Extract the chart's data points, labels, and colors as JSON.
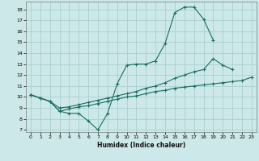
{
  "background_color": "#cce8e8",
  "grid_color": "#aacfcf",
  "line_color": "#1a6e62",
  "xlabel": "Humidex (Indice chaleur)",
  "xlim": [
    -0.5,
    23.5
  ],
  "ylim": [
    6.8,
    18.7
  ],
  "xticks": [
    0,
    1,
    2,
    3,
    4,
    5,
    6,
    7,
    8,
    9,
    10,
    11,
    12,
    13,
    14,
    15,
    16,
    17,
    18,
    19,
    20,
    21,
    22,
    23
  ],
  "yticks": [
    7,
    8,
    9,
    10,
    11,
    12,
    13,
    14,
    15,
    16,
    17,
    18
  ],
  "line1_x": [
    0,
    1,
    2,
    3,
    4,
    5,
    6,
    7,
    8,
    9,
    10,
    11,
    12,
    13,
    14,
    15,
    16,
    17,
    18,
    19
  ],
  "line1_y": [
    10.2,
    9.9,
    9.6,
    8.7,
    8.5,
    8.5,
    7.8,
    7.0,
    8.5,
    11.2,
    12.9,
    13.0,
    13.0,
    13.3,
    14.9,
    17.7,
    18.2,
    18.2,
    17.1,
    15.2
  ],
  "line2_x": [
    0,
    1,
    2,
    3,
    4,
    5,
    6,
    7,
    8,
    9,
    10,
    11,
    12,
    13,
    14,
    15,
    16,
    17,
    18,
    19,
    20,
    21
  ],
  "line2_y": [
    10.2,
    9.9,
    9.6,
    9.0,
    9.1,
    9.3,
    9.5,
    9.7,
    9.9,
    10.1,
    10.3,
    10.5,
    10.8,
    11.0,
    11.3,
    11.7,
    12.0,
    12.3,
    12.5,
    13.5,
    12.9,
    12.5
  ],
  "line3_x": [
    0,
    1,
    2,
    3,
    4,
    5,
    6,
    7,
    8,
    9,
    10,
    11,
    12,
    13,
    14,
    15,
    16,
    17,
    18,
    19,
    20,
    21,
    22,
    23
  ],
  "line3_y": [
    10.2,
    9.9,
    9.6,
    8.7,
    8.9,
    9.1,
    9.2,
    9.4,
    9.6,
    9.8,
    10.0,
    10.1,
    10.3,
    10.5,
    10.6,
    10.8,
    10.9,
    11.0,
    11.1,
    11.2,
    11.3,
    11.4,
    11.5,
    11.8
  ]
}
